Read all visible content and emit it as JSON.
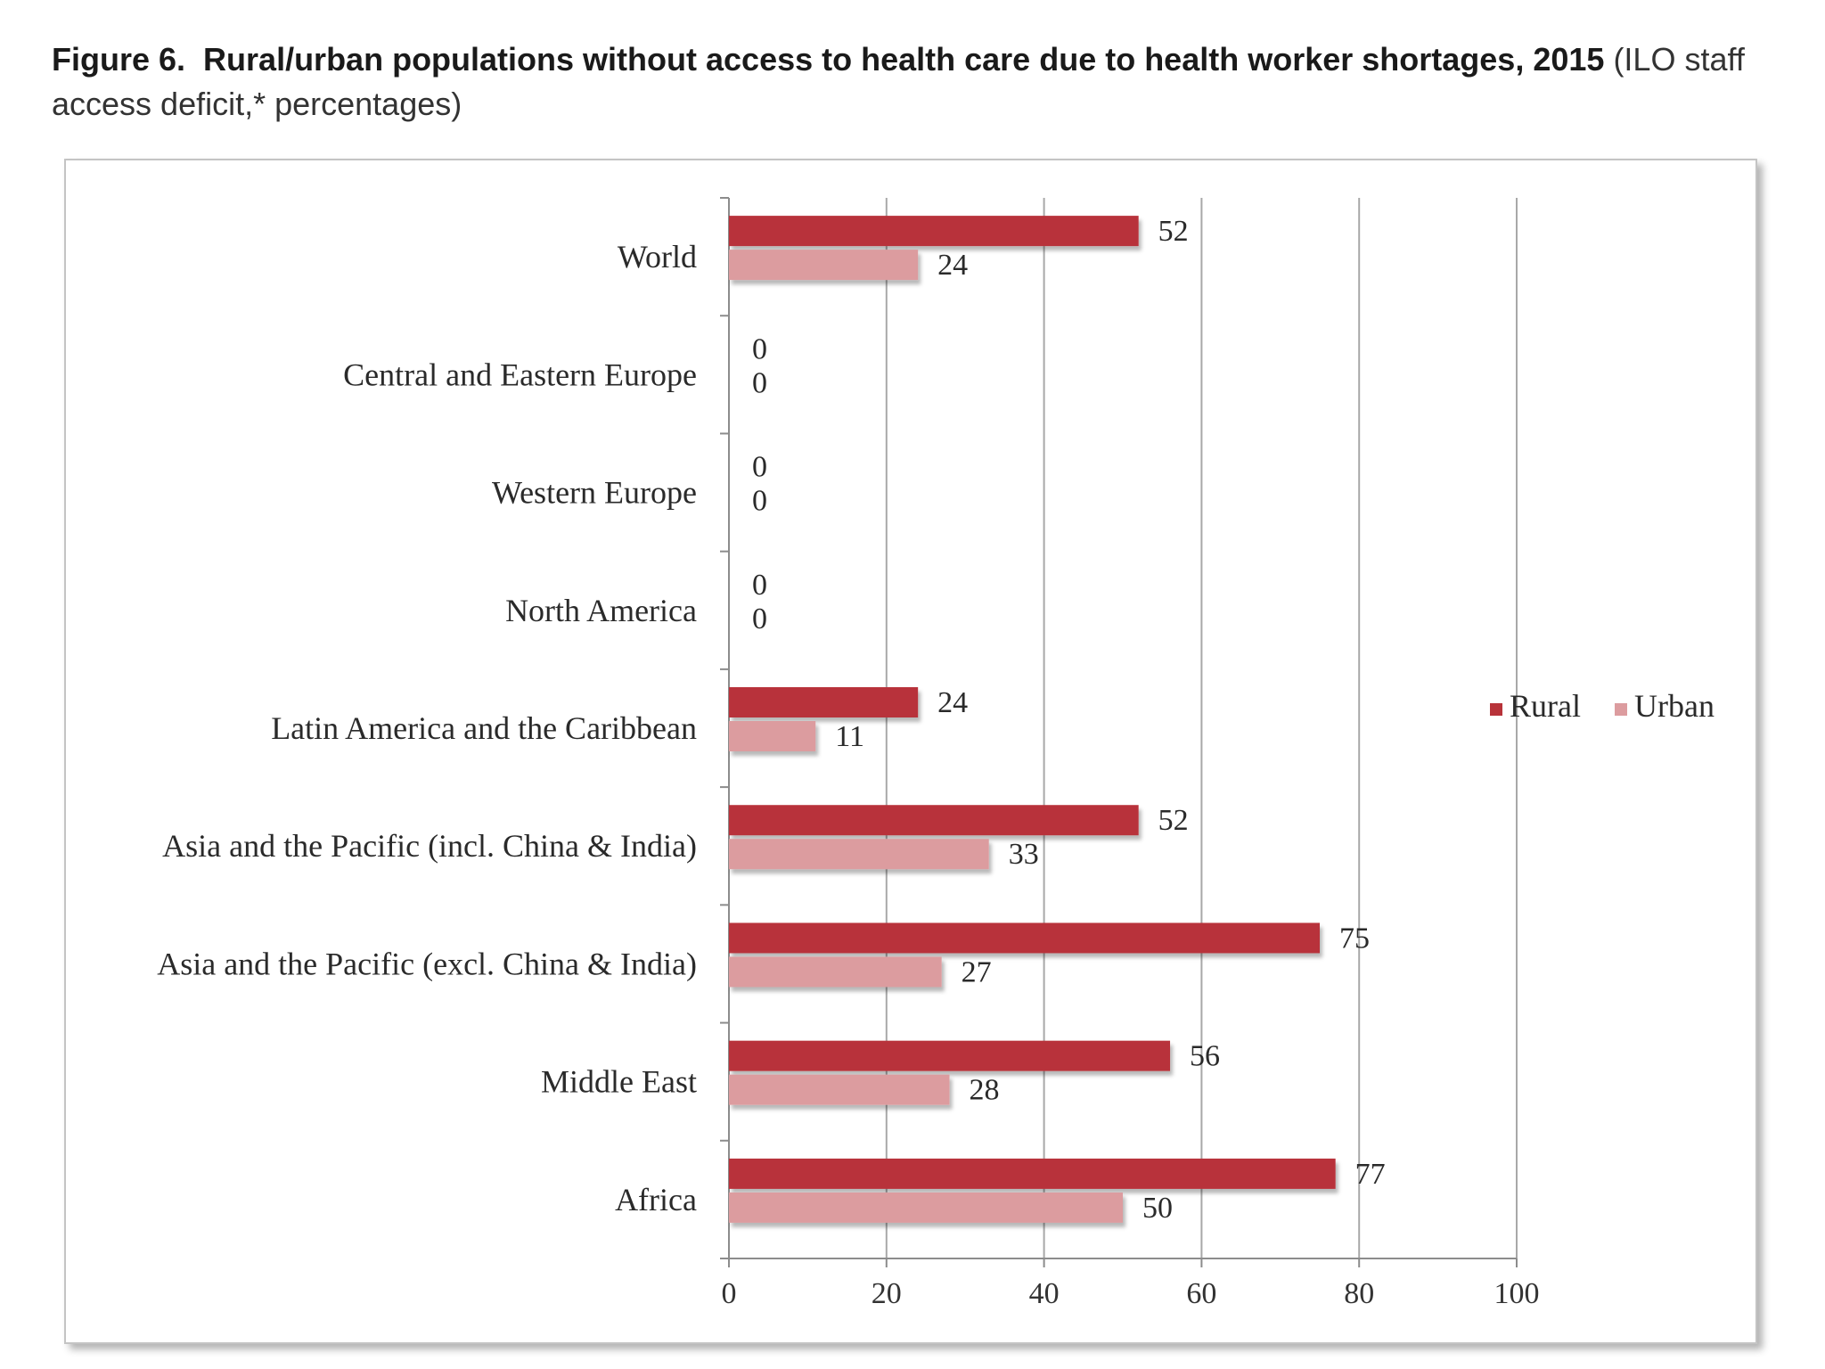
{
  "figure": {
    "label": "Figure 6.",
    "title": "Rural/urban populations without access to health care due to health worker shortages, 2015",
    "subtitle": "(ILO staff access deficit,* percentages)"
  },
  "chart_data": {
    "type": "bar",
    "orientation": "horizontal",
    "categories": [
      "World",
      "Central and Eastern Europe",
      "Western Europe",
      "North America",
      "Latin America and the Caribbean",
      "Asia and the Pacific (incl. China & India)",
      "Asia and the Pacific (excl. China & India)",
      "Middle East",
      "Africa"
    ],
    "series": [
      {
        "name": "Rural",
        "color": "#b8333a",
        "values": [
          52,
          0,
          0,
          0,
          24,
          52,
          75,
          56,
          77
        ]
      },
      {
        "name": "Urban",
        "color": "#dc9c9f",
        "values": [
          24,
          0,
          0,
          0,
          11,
          33,
          27,
          28,
          50
        ]
      }
    ],
    "xlim": [
      0,
      100
    ],
    "xticks": [
      0,
      20,
      40,
      60,
      80,
      100
    ],
    "grid": true,
    "legend_position": "right",
    "data_labels": true,
    "xlabel": "",
    "ylabel": ""
  }
}
